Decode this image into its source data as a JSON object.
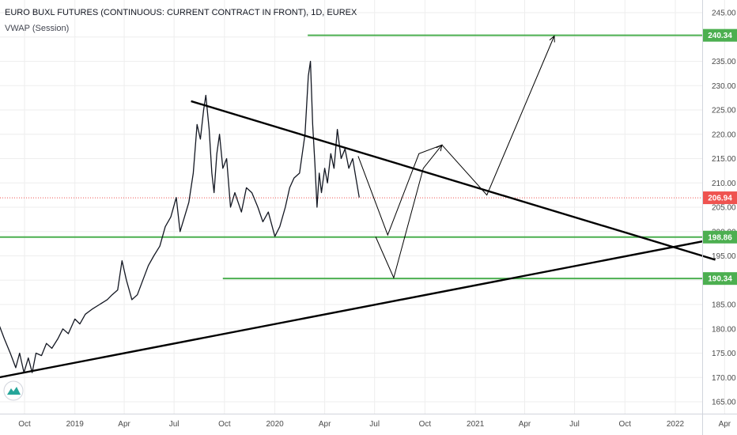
{
  "header": {
    "title": "EURO BUXL FUTURES (CONTINUOUS: CURRENT CONTRACT IN FRONT), 1D, EUREX",
    "indicator": "VWAP (Session)"
  },
  "colors": {
    "price": "#131722",
    "level_green": "#4caf50",
    "last_price": "#ef5350",
    "trendline": "#000000",
    "grid": "#eeeeee",
    "axis_text": "#4a4a4a"
  },
  "logo_icon": "tradingview-logo-icon",
  "chart_data": {
    "type": "line",
    "title": "EURO BUXL FUTURES (CONTINUOUS: CURRENT CONTRACT IN FRONT), 1D, EUREX",
    "xlabel": "",
    "ylabel": "",
    "ylim": [
      162,
      247
    ],
    "xlim": [
      "2018-08-15",
      "2022-04-01"
    ],
    "x_ticks": [
      {
        "date": "2018-10-01",
        "label": "Oct"
      },
      {
        "date": "2019-01-01",
        "label": "2019"
      },
      {
        "date": "2019-04-01",
        "label": "Apr"
      },
      {
        "date": "2019-07-01",
        "label": "Jul"
      },
      {
        "date": "2019-10-01",
        "label": "Oct"
      },
      {
        "date": "2020-01-01",
        "label": "2020"
      },
      {
        "date": "2020-04-01",
        "label": "Apr"
      },
      {
        "date": "2020-07-01",
        "label": "Jul"
      },
      {
        "date": "2020-10-01",
        "label": "Oct"
      },
      {
        "date": "2021-01-01",
        "label": "2021"
      },
      {
        "date": "2021-04-01",
        "label": "Apr"
      },
      {
        "date": "2021-07-01",
        "label": "Jul"
      },
      {
        "date": "2021-10-01",
        "label": "Oct"
      },
      {
        "date": "2022-01-01",
        "label": "2022"
      },
      {
        "date": "2022-04-01",
        "label": "Apr"
      }
    ],
    "y_ticks": [
      165,
      170,
      175,
      180,
      185,
      190,
      195,
      200,
      205,
      210,
      215,
      220,
      225,
      230,
      235,
      240,
      245
    ],
    "price_series": [
      [
        "2018-08-15",
        181
      ],
      [
        "2018-08-25",
        178
      ],
      [
        "2018-09-05",
        175
      ],
      [
        "2018-09-15",
        172
      ],
      [
        "2018-09-22",
        175
      ],
      [
        "2018-09-30",
        171
      ],
      [
        "2018-10-08",
        174
      ],
      [
        "2018-10-15",
        171
      ],
      [
        "2018-10-22",
        175
      ],
      [
        "2018-11-01",
        174.5
      ],
      [
        "2018-11-10",
        177
      ],
      [
        "2018-11-20",
        176
      ],
      [
        "2018-12-01",
        178
      ],
      [
        "2018-12-10",
        180
      ],
      [
        "2018-12-20",
        179
      ],
      [
        "2019-01-01",
        182
      ],
      [
        "2019-01-10",
        181
      ],
      [
        "2019-01-20",
        183
      ],
      [
        "2019-02-01",
        184
      ],
      [
        "2019-02-15",
        185
      ],
      [
        "2019-03-01",
        186
      ],
      [
        "2019-03-10",
        187
      ],
      [
        "2019-03-20",
        188
      ],
      [
        "2019-03-28",
        194
      ],
      [
        "2019-04-05",
        190
      ],
      [
        "2019-04-15",
        186
      ],
      [
        "2019-04-25",
        187
      ],
      [
        "2019-05-05",
        190
      ],
      [
        "2019-05-15",
        193
      ],
      [
        "2019-05-25",
        195
      ],
      [
        "2019-06-05",
        197
      ],
      [
        "2019-06-15",
        201
      ],
      [
        "2019-06-25",
        203
      ],
      [
        "2019-07-05",
        207
      ],
      [
        "2019-07-12",
        200
      ],
      [
        "2019-07-20",
        203
      ],
      [
        "2019-07-28",
        206
      ],
      [
        "2019-08-05",
        212
      ],
      [
        "2019-08-12",
        222
      ],
      [
        "2019-08-18",
        219
      ],
      [
        "2019-08-24",
        225
      ],
      [
        "2019-08-28",
        228
      ],
      [
        "2019-09-03",
        221
      ],
      [
        "2019-09-08",
        212
      ],
      [
        "2019-09-12",
        208
      ],
      [
        "2019-09-17",
        216
      ],
      [
        "2019-09-22",
        220
      ],
      [
        "2019-09-28",
        213
      ],
      [
        "2019-10-05",
        215
      ],
      [
        "2019-10-12",
        205
      ],
      [
        "2019-10-20",
        208
      ],
      [
        "2019-11-01",
        204
      ],
      [
        "2019-11-10",
        209
      ],
      [
        "2019-11-20",
        208
      ],
      [
        "2019-12-01",
        205
      ],
      [
        "2019-12-10",
        202
      ],
      [
        "2019-12-20",
        204
      ],
      [
        "2020-01-01",
        199
      ],
      [
        "2020-01-10",
        201
      ],
      [
        "2020-01-20",
        205
      ],
      [
        "2020-01-28",
        209
      ],
      [
        "2020-02-05",
        211
      ],
      [
        "2020-02-15",
        212
      ],
      [
        "2020-02-25",
        220
      ],
      [
        "2020-03-02",
        232
      ],
      [
        "2020-03-06",
        235
      ],
      [
        "2020-03-10",
        222
      ],
      [
        "2020-03-14",
        214
      ],
      [
        "2020-03-18",
        205
      ],
      [
        "2020-03-22",
        212
      ],
      [
        "2020-03-26",
        208
      ],
      [
        "2020-04-01",
        213
      ],
      [
        "2020-04-06",
        210
      ],
      [
        "2020-04-12",
        216
      ],
      [
        "2020-04-18",
        213
      ],
      [
        "2020-04-24",
        221
      ],
      [
        "2020-05-01",
        215
      ],
      [
        "2020-05-08",
        217
      ],
      [
        "2020-05-15",
        213
      ],
      [
        "2020-05-22",
        215
      ],
      [
        "2020-05-28",
        211
      ],
      [
        "2020-06-03",
        207
      ]
    ],
    "levels": [
      {
        "name": "resistance",
        "value": 240.34,
        "label": "240.34",
        "x_start": "2020-03-01",
        "color": "#4caf50"
      },
      {
        "name": "support-upper",
        "value": 198.86,
        "label": "198.86",
        "x_start": "2018-08-15",
        "color": "#4caf50"
      },
      {
        "name": "support-lower",
        "value": 190.34,
        "label": "190.34",
        "x_start": "2019-09-28",
        "color": "#4caf50"
      }
    ],
    "last_price": {
      "value": 206.94,
      "label": "206.94",
      "color": "#ef5350"
    },
    "trendlines": [
      {
        "name": "descending-trendline",
        "from": [
          "2019-08-01",
          226.8
        ],
        "to": [
          "2022-03-15",
          194.2
        ]
      },
      {
        "name": "ascending-trendline",
        "from": [
          "2018-08-15",
          170.0
        ],
        "to": [
          "2022-04-01",
          198.86
        ]
      }
    ],
    "projection_paths": [
      {
        "name": "projection-path-short",
        "points": [
          [
            "2020-06-01",
            215.5
          ],
          [
            "2020-07-25",
            199.3
          ],
          [
            "2020-09-20",
            216
          ],
          [
            "2020-11-01",
            217.8
          ],
          [
            "2021-01-22",
            207.5
          ],
          [
            "2021-05-25",
            240.2
          ]
        ]
      },
      {
        "name": "projection-path-deep",
        "points": [
          [
            "2020-07-03",
            198.9
          ],
          [
            "2020-08-05",
            190.5
          ],
          [
            "2020-09-28",
            213
          ],
          [
            "2020-11-01",
            217.8
          ]
        ]
      }
    ]
  }
}
